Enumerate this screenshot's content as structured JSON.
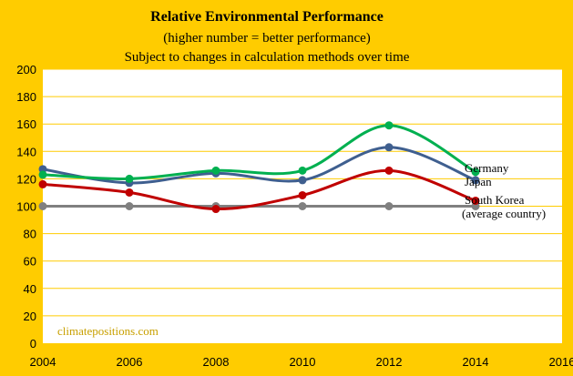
{
  "chart_data": {
    "type": "line",
    "title": "Relative Environmental Performance",
    "subtitle_lines": [
      "(higher number = better performance)",
      "Subject to changes in calculation  methods over time"
    ],
    "x_ticks": [
      "2004",
      "2006",
      "2008",
      "2010",
      "2012",
      "2014",
      "2016"
    ],
    "xlim": [
      2004,
      2016
    ],
    "ylim": [
      0,
      200
    ],
    "y_ticks": [
      "0",
      "20",
      "40",
      "60",
      "80",
      "100",
      "120",
      "140",
      "160",
      "180",
      "200"
    ],
    "grid": "horizontal",
    "watermark": "climatepositions.com",
    "series": [
      {
        "name": "Germany",
        "color": "#00b050",
        "x": [
          2004,
          2006,
          2008,
          2010,
          2012,
          2014
        ],
        "values": [
          123,
          120,
          126,
          126,
          159,
          125
        ]
      },
      {
        "name": "Japan",
        "color": "#3f5f8f",
        "x": [
          2004,
          2006,
          2008,
          2010,
          2012,
          2014
        ],
        "values": [
          127,
          117,
          124,
          119,
          143,
          119
        ]
      },
      {
        "name": "South Korea",
        "color": "#c00000",
        "x": [
          2004,
          2006,
          2008,
          2010,
          2012,
          2014
        ],
        "values": [
          116,
          110,
          98,
          108,
          126,
          104
        ]
      },
      {
        "name": "(average country)",
        "color": "#808080",
        "x": [
          2004,
          2006,
          2008,
          2010,
          2012,
          2014
        ],
        "values": [
          100,
          100,
          100,
          100,
          100,
          100
        ]
      }
    ]
  }
}
